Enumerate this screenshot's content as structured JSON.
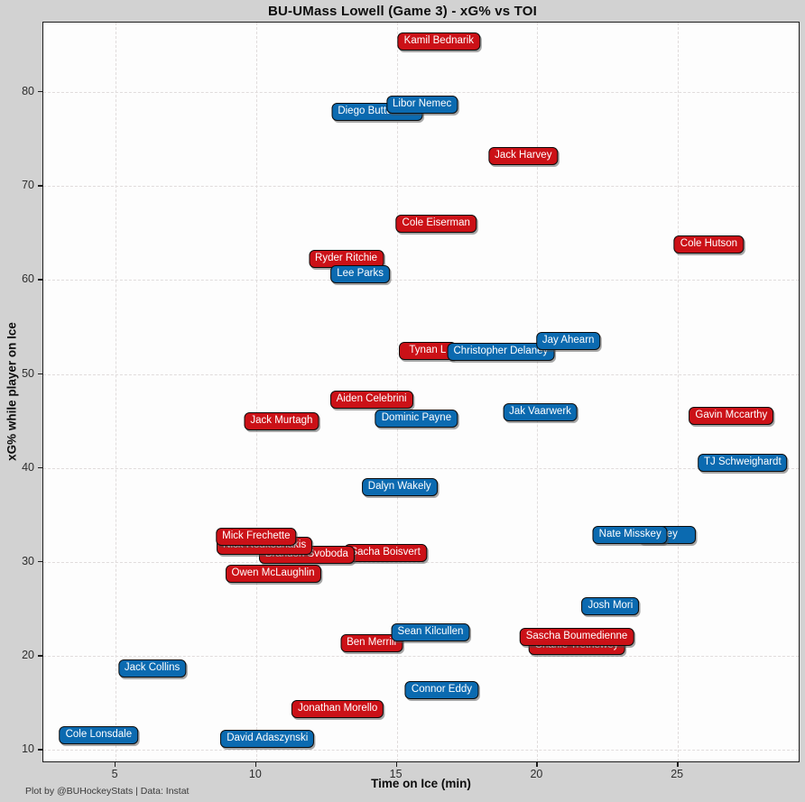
{
  "footer": "Plot by @BUHockeyStats | Data: Instat",
  "colors": {
    "red_team": "#cb1117",
    "blue_team": "#0b6ab0",
    "figure_bg": "#d2d2d2",
    "plot_bg": "#fdfdfd",
    "grid": "#e0dcdc",
    "label_text": "#ffffff"
  },
  "chart_data": {
    "type": "scatter",
    "title": "BU-UMass Lowell (Game 3) - xG% vs TOI",
    "xlabel": "Time on Ice (min)",
    "ylabel": "xG% while player on Ice",
    "xlim": [
      2.43,
      29.36
    ],
    "ylim": [
      8.6,
      87.4
    ],
    "x_ticks": [
      5,
      10,
      15,
      20,
      25
    ],
    "y_ticks": [
      10,
      20,
      30,
      40,
      50,
      60,
      70,
      80
    ],
    "grid": true,
    "legend": "none",
    "point_style": "boxed-player-name-annotations",
    "players": [
      {
        "label": "Kamil Bednarik",
        "team": "red",
        "toi": 16.5,
        "xg": 85.4
      },
      {
        "label": "Diego Buttazzoni",
        "team": "blue",
        "toi": 14.3,
        "xg": 77.9
      },
      {
        "label": "Libor Nemec",
        "team": "blue",
        "toi": 15.9,
        "xg": 78.7
      },
      {
        "label": "Jack Harvey",
        "team": "red",
        "toi": 19.5,
        "xg": 73.2
      },
      {
        "label": "Cole Eiserman",
        "team": "red",
        "toi": 16.4,
        "xg": 66.0
      },
      {
        "label": "Cole Hutson",
        "team": "red",
        "toi": 26.1,
        "xg": 63.8
      },
      {
        "label": "Ryder Ritchie",
        "team": "red",
        "toi": 13.2,
        "xg": 62.3
      },
      {
        "label": "Lee Parks",
        "team": "blue",
        "toi": 13.7,
        "xg": 60.6
      },
      {
        "label": "Tynan L",
        "team": "red",
        "toi": 16.1,
        "xg": 52.5,
        "partial": true
      },
      {
        "label": "Christopher Delaney",
        "team": "blue",
        "toi": 18.7,
        "xg": 52.4
      },
      {
        "label": "Jay Ahearn",
        "team": "blue",
        "toi": 21.1,
        "xg": 53.5
      },
      {
        "label": "Aiden Celebrini",
        "team": "red",
        "toi": 14.1,
        "xg": 47.3
      },
      {
        "label": "Jack Murtagh",
        "team": "red",
        "toi": 10.9,
        "xg": 45.0
      },
      {
        "label": "Dominic Payne",
        "team": "blue",
        "toi": 15.7,
        "xg": 45.3
      },
      {
        "label": "Jak Vaarwerk",
        "team": "blue",
        "toi": 20.1,
        "xg": 45.9
      },
      {
        "label": "Gavin Mccarthy",
        "team": "red",
        "toi": 26.9,
        "xg": 45.6
      },
      {
        "label": "TJ Schweighardt",
        "team": "blue",
        "toi": 27.3,
        "xg": 40.6
      },
      {
        "label": "Dalyn Wakely",
        "team": "blue",
        "toi": 15.1,
        "xg": 38.0
      },
      {
        "label": "ntley",
        "team": "blue",
        "toi": 24.6,
        "xg": 32.9,
        "partial": true
      },
      {
        "label": "Nate Misskey",
        "team": "blue",
        "toi": 23.3,
        "xg": 32.9
      },
      {
        "label": "Sacha Boisvert",
        "team": "red",
        "toi": 14.6,
        "xg": 31.0
      },
      {
        "label": "Brandon Svoboda",
        "team": "red",
        "toi": 11.8,
        "xg": 30.8
      },
      {
        "label": "Nick Roukounakis",
        "team": "red",
        "toi": 10.3,
        "xg": 31.7
      },
      {
        "label": "Mick Frechette",
        "team": "red",
        "toi": 10.0,
        "xg": 32.7
      },
      {
        "label": "Owen McLaughlin",
        "team": "red",
        "toi": 10.6,
        "xg": 28.8
      },
      {
        "label": "Josh Mori",
        "team": "blue",
        "toi": 22.6,
        "xg": 25.3
      },
      {
        "label": "Ben Merrill",
        "team": "red",
        "toi": 14.1,
        "xg": 21.4
      },
      {
        "label": "Sean Kilcullen",
        "team": "blue",
        "toi": 16.2,
        "xg": 22.5
      },
      {
        "label": "Charlie Trethewey",
        "team": "red",
        "toi": 21.4,
        "xg": 21.1
      },
      {
        "label": "Sascha Boumedienne",
        "team": "red",
        "toi": 21.4,
        "xg": 22.0
      },
      {
        "label": "Jack Collins",
        "team": "blue",
        "toi": 6.3,
        "xg": 18.7
      },
      {
        "label": "Connor Eddy",
        "team": "blue",
        "toi": 16.6,
        "xg": 16.4
      },
      {
        "label": "Jonathan Morello",
        "team": "red",
        "toi": 12.9,
        "xg": 14.4
      },
      {
        "label": "Cole Lonsdale",
        "team": "blue",
        "toi": 4.4,
        "xg": 11.6
      },
      {
        "label": "David Adaszynski",
        "team": "blue",
        "toi": 10.4,
        "xg": 11.2
      }
    ]
  }
}
